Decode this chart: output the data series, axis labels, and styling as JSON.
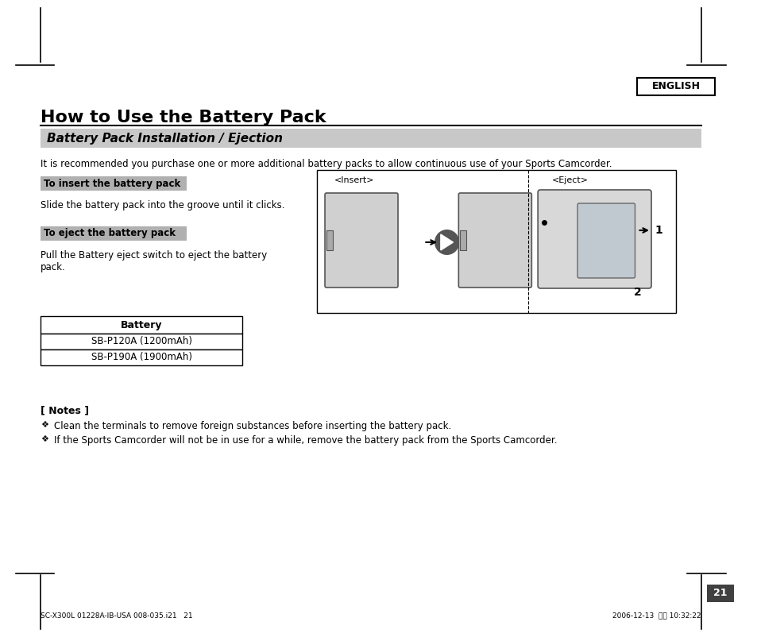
{
  "page_bg": "#ffffff",
  "english_box_text": "ENGLISH",
  "main_title": "How to Use the Battery Pack",
  "section_title": "Battery Pack Installation / Ejection",
  "section_bg": "#c8c8c8",
  "intro_text": "It is recommended you purchase one or more additional battery packs to allow continuous use of your Sports Camcorder.",
  "label1_text": "To insert the battery pack",
  "label1_bg": "#b0b0b0",
  "desc1_text": "Slide the battery pack into the groove until it clicks.",
  "label2_text": "To eject the battery pack",
  "label2_bg": "#b0b0b0",
  "desc2_text": "Pull the Battery eject switch to eject the battery\npack.",
  "table_header": "Battery",
  "table_rows": [
    "SB-P120A (1200mAh)",
    "SB-P190A (1900mAh)"
  ],
  "notes_title": "[ Notes ]",
  "notes": [
    "Clean the terminals to remove foreign substances before inserting the battery pack.",
    "If the Sports Camcorder will not be in use for a while, remove the battery pack from the Sports Camcorder."
  ],
  "page_number": "21",
  "footer_left": "SC-X300L 01228A-IB-USA 008-035.i21   21",
  "footer_right": "2006-12-13  오전 10:32:22",
  "insert_label": "<Insert>",
  "eject_label": "<Eject>"
}
